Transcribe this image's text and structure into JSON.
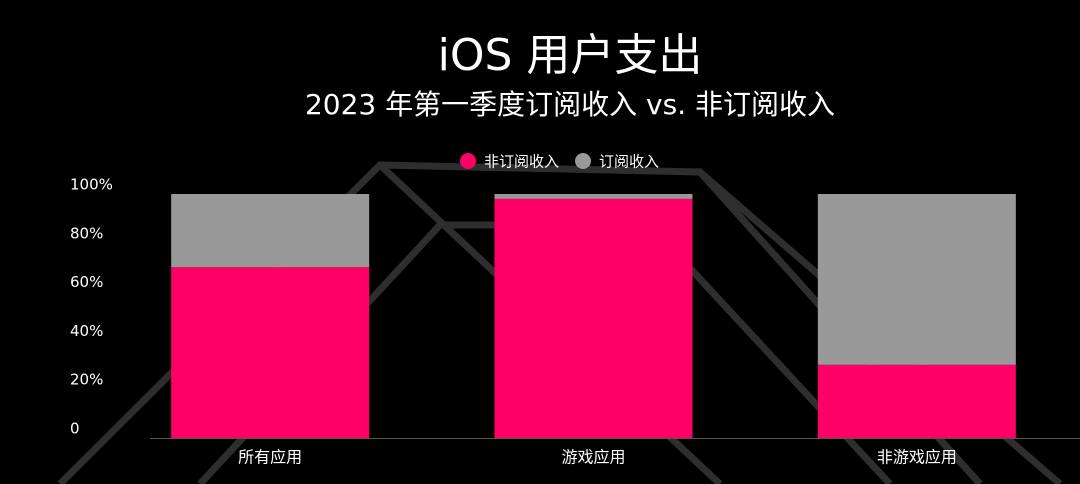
{
  "chart_data": {
    "type": "stacked_bar",
    "title": "iOS 用户支出",
    "subtitle": "2023 年第一季度订阅收入 vs. 非订阅收入",
    "categories": [
      "所有应用",
      "游戏应用",
      "非游戏应用"
    ],
    "series": [
      {
        "name": "非订阅收入",
        "color": "#ff0066",
        "values": [
          70,
          98,
          30
        ]
      },
      {
        "name": "订阅收入",
        "color": "#999999",
        "values": [
          30,
          2,
          70
        ]
      }
    ],
    "ylim": [
      0,
      100
    ],
    "yticks": [
      0,
      {
        "value": 20,
        "label": "20%"
      },
      {
        "value": 40,
        "label": "40%"
      },
      {
        "value": 60,
        "label": "60%"
      },
      {
        "value": 80,
        "label": "80%"
      },
      {
        "value": 100,
        "label": "100%"
      }
    ],
    "legend": "top"
  }
}
